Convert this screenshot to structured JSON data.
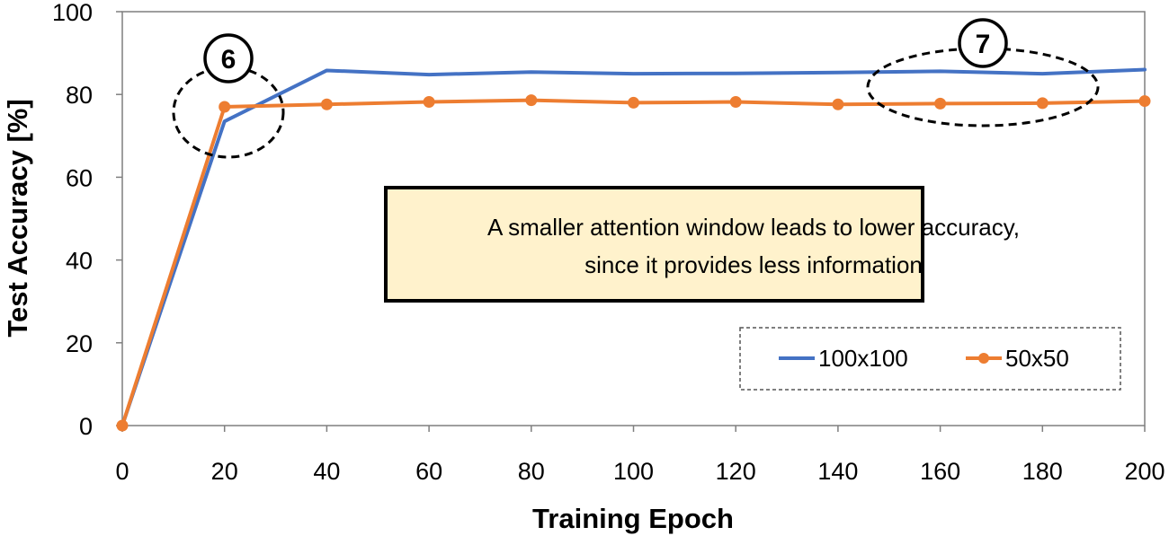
{
  "chart_data": {
    "type": "line",
    "x": [
      0,
      20,
      40,
      60,
      80,
      100,
      120,
      140,
      160,
      180,
      200
    ],
    "series": [
      {
        "name": "100x100",
        "color": "#4472C4",
        "markers": false,
        "values": [
          0,
          73.5,
          85.8,
          84.8,
          85.4,
          85.0,
          85.1,
          85.3,
          85.6,
          85.0,
          86.0
        ]
      },
      {
        "name": "50x50",
        "color": "#ED7D31",
        "markers": true,
        "values": [
          0,
          77.0,
          77.6,
          78.2,
          78.6,
          78.0,
          78.2,
          77.6,
          77.8,
          77.9,
          78.4
        ]
      }
    ],
    "xlabel": "Training Epoch",
    "ylabel": "Test Accuracy [%]",
    "xlim": [
      0,
      200
    ],
    "ylim": [
      0,
      100
    ],
    "xticks": [
      "0",
      "20",
      "40",
      "60",
      "80",
      "100",
      "120",
      "140",
      "160",
      "180",
      "200"
    ],
    "yticks": [
      "0",
      "20",
      "40",
      "60",
      "80",
      "100"
    ],
    "grid": false,
    "legend_position": "bottom-right",
    "annotation": {
      "line1": "A smaller attention window leads to lower accuracy,",
      "line2": "since it provides less information",
      "background": "#FFF2CC"
    },
    "markers": [
      {
        "label": "6",
        "x": 20,
        "y": 77
      },
      {
        "label": "7",
        "x": 167,
        "y": 81.5
      }
    ]
  }
}
